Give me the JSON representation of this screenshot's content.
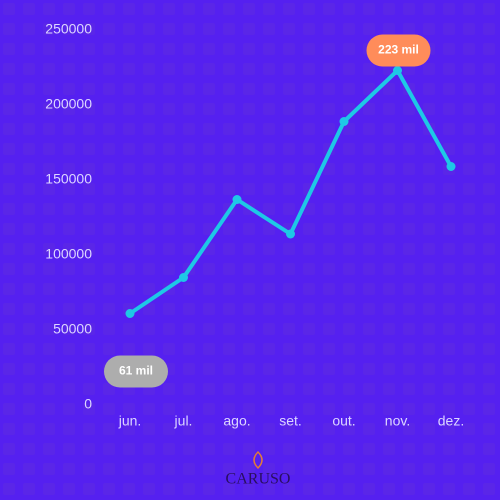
{
  "chart_data": {
    "type": "line",
    "categories": [
      "jun.",
      "jul.",
      "ago.",
      "set.",
      "out.",
      "nov.",
      "dez."
    ],
    "values": [
      61000,
      85000,
      137000,
      114000,
      189000,
      223000,
      159000
    ],
    "value_labels": [
      "61 mil",
      null,
      null,
      null,
      null,
      "223 mil",
      null
    ],
    "color": "#1ec8e6",
    "ylim": [
      0,
      250000
    ],
    "yticks": [
      0,
      50000,
      100000,
      150000,
      200000,
      250000
    ],
    "brand": "CARUSO"
  }
}
